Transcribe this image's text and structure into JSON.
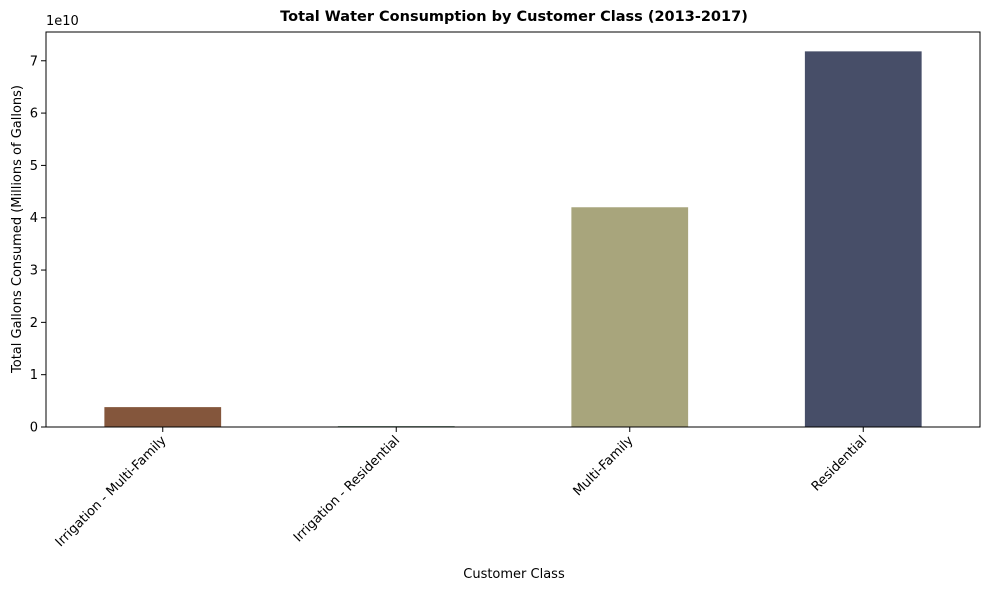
{
  "chart_data": {
    "type": "bar",
    "title": "Total Water Consumption by Customer Class (2013-2017)",
    "xlabel": "Customer Class",
    "ylabel": "Total Gallons Consumed (Millions of Gallons)",
    "y_offset_label": "1e10",
    "categories": [
      "Irrigation - Multi-Family",
      "Irrigation - Residential",
      "Multi-Family",
      "Residential"
    ],
    "values": [
      3.8,
      0.15,
      42.0,
      71.8
    ],
    "value_unit": "1e9 gallons",
    "colors": [
      "#84563c",
      "#2a5b40",
      "#a8a57c",
      "#474e68"
    ],
    "yticks": [
      0,
      1,
      2,
      3,
      4,
      5,
      6,
      7
    ],
    "ytick_scale": 10,
    "ylim": [
      0,
      75.5
    ],
    "grid": false,
    "legend": "none"
  }
}
